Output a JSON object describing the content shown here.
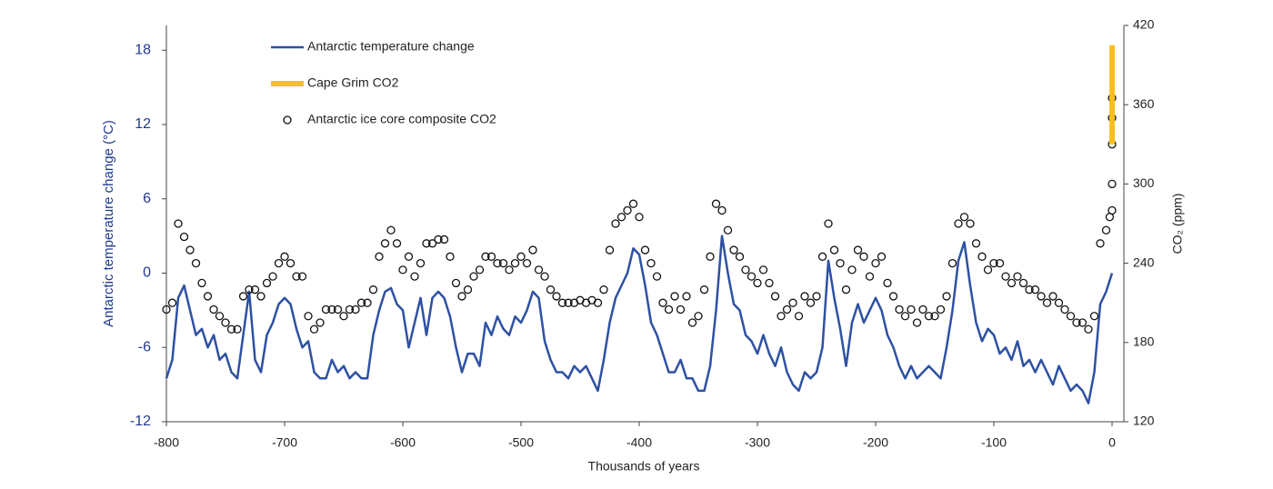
{
  "chart_data": {
    "type": "line",
    "xlabel": "Thousands of years",
    "ylabel": "Antarctic temperature change (°C)",
    "y2label": "CO₂ (ppm)",
    "xlim": [
      -800,
      10
    ],
    "xticks": [
      -800,
      -700,
      -600,
      -500,
      -400,
      -300,
      -200,
      -100,
      0
    ],
    "ylim": [
      -12,
      20
    ],
    "yticks": [
      -12,
      -6,
      0,
      6,
      12,
      18
    ],
    "y2lim": [
      120,
      420
    ],
    "y2ticks": [
      120,
      180,
      240,
      300,
      360,
      420
    ],
    "legend": "upper left",
    "series": [
      {
        "name": "Antarctic temperature change",
        "color": "#2e51a2",
        "style": "line",
        "x": [
          -800,
          -795,
          -790,
          -785,
          -780,
          -775,
          -770,
          -765,
          -760,
          -755,
          -750,
          -745,
          -740,
          -735,
          -730,
          -725,
          -720,
          -715,
          -710,
          -705,
          -700,
          -695,
          -690,
          -685,
          -680,
          -675,
          -670,
          -665,
          -660,
          -655,
          -650,
          -645,
          -640,
          -635,
          -630,
          -625,
          -620,
          -615,
          -610,
          -605,
          -600,
          -595,
          -590,
          -585,
          -580,
          -575,
          -570,
          -565,
          -560,
          -555,
          -550,
          -545,
          -540,
          -535,
          -530,
          -525,
          -520,
          -515,
          -510,
          -505,
          -500,
          -495,
          -490,
          -485,
          -480,
          -475,
          -470,
          -465,
          -460,
          -455,
          -450,
          -445,
          -440,
          -435,
          -430,
          -425,
          -420,
          -415,
          -410,
          -405,
          -400,
          -395,
          -390,
          -385,
          -380,
          -375,
          -370,
          -365,
          -360,
          -355,
          -350,
          -345,
          -340,
          -335,
          -330,
          -325,
          -320,
          -315,
          -310,
          -305,
          -300,
          -295,
          -290,
          -285,
          -280,
          -275,
          -270,
          -265,
          -260,
          -255,
          -250,
          -245,
          -240,
          -235,
          -230,
          -225,
          -220,
          -215,
          -210,
          -205,
          -200,
          -195,
          -190,
          -185,
          -180,
          -175,
          -170,
          -165,
          -160,
          -155,
          -150,
          -145,
          -140,
          -135,
          -130,
          -125,
          -120,
          -115,
          -110,
          -105,
          -100,
          -95,
          -90,
          -85,
          -80,
          -75,
          -70,
          -65,
          -60,
          -55,
          -50,
          -45,
          -40,
          -35,
          -30,
          -25,
          -20,
          -15,
          -10,
          -5,
          0
        ],
        "values": [
          -8.5,
          -7,
          -2,
          -1,
          -3,
          -5,
          -4.5,
          -6,
          -5,
          -7,
          -6.5,
          -8,
          -8.5,
          -5,
          -1.5,
          -7,
          -8,
          -5,
          -4,
          -2.5,
          -2,
          -2.5,
          -4.5,
          -6,
          -5.5,
          -8,
          -8.5,
          -8.5,
          -7,
          -8,
          -7.5,
          -8.5,
          -8,
          -8.5,
          -8.5,
          -5,
          -3,
          -1.5,
          -1.2,
          -2.5,
          -3,
          -6,
          -4,
          -2,
          -5,
          -2,
          -1.5,
          -2,
          -3.5,
          -6,
          -8,
          -6.5,
          -6.5,
          -7.5,
          -4,
          -5,
          -3.5,
          -4.5,
          -5,
          -3.5,
          -4,
          -3,
          -1.5,
          -2,
          -5.5,
          -7,
          -8,
          -8,
          -8.5,
          -7.5,
          -8,
          -7.5,
          -8.5,
          -9.5,
          -7,
          -4,
          -2,
          -1,
          0,
          2,
          1.5,
          -1,
          -4,
          -5,
          -6.5,
          -8,
          -8,
          -7,
          -8.5,
          -8.5,
          -9.5,
          -9.5,
          -7.5,
          -3,
          3,
          0,
          -2.5,
          -3,
          -5,
          -5.5,
          -6.5,
          -5,
          -6.5,
          -7.5,
          -6,
          -8,
          -9,
          -9.5,
          -8,
          -8.5,
          -8,
          -6,
          1,
          -2,
          -4.5,
          -7.5,
          -4,
          -2.5,
          -4,
          -3,
          -2,
          -3,
          -5,
          -6,
          -7.5,
          -8.5,
          -7.5,
          -8.5,
          -8,
          -7.5,
          -8,
          -8.5,
          -6,
          -3,
          1,
          2.5,
          -1,
          -4,
          -5.5,
          -4.5,
          -5,
          -6.5,
          -6,
          -7,
          -5.5,
          -7.5,
          -7,
          -8,
          -7,
          -8,
          -9,
          -7.5,
          -8.5,
          -9.5,
          -9,
          -9.5,
          -10.5,
          -8,
          -2.5,
          -1.5,
          0
        ]
      },
      {
        "name": "Cape Grim CO2",
        "color": "#f9bf1e",
        "style": "thick",
        "axis": "y2",
        "x": [
          0.03,
          0.04,
          0.05
        ],
        "values": [
          330,
          370,
          405
        ]
      },
      {
        "name": "Antarctic ice core composite CO2",
        "color": "#111111",
        "style": "marker",
        "axis": "y2",
        "x": [
          -800,
          -795,
          -790,
          -785,
          -780,
          -775,
          -770,
          -765,
          -760,
          -755,
          -750,
          -745,
          -740,
          -735,
          -730,
          -725,
          -720,
          -715,
          -710,
          -705,
          -700,
          -695,
          -690,
          -685,
          -680,
          -675,
          -670,
          -665,
          -660,
          -655,
          -650,
          -645,
          -640,
          -635,
          -630,
          -625,
          -620,
          -615,
          -610,
          -605,
          -600,
          -595,
          -590,
          -585,
          -580,
          -575,
          -570,
          -565,
          -560,
          -555,
          -550,
          -545,
          -540,
          -535,
          -530,
          -525,
          -520,
          -515,
          -510,
          -505,
          -500,
          -495,
          -490,
          -485,
          -480,
          -475,
          -470,
          -465,
          -460,
          -455,
          -450,
          -445,
          -440,
          -435,
          -430,
          -425,
          -420,
          -415,
          -410,
          -405,
          -400,
          -395,
          -390,
          -385,
          -380,
          -375,
          -370,
          -365,
          -360,
          -355,
          -350,
          -345,
          -340,
          -335,
          -330,
          -325,
          -320,
          -315,
          -310,
          -305,
          -300,
          -295,
          -290,
          -285,
          -280,
          -275,
          -270,
          -265,
          -260,
          -255,
          -250,
          -245,
          -240,
          -235,
          -230,
          -225,
          -220,
          -215,
          -210,
          -205,
          -200,
          -195,
          -190,
          -185,
          -180,
          -175,
          -170,
          -165,
          -160,
          -155,
          -150,
          -145,
          -140,
          -135,
          -130,
          -125,
          -120,
          -115,
          -110,
          -105,
          -100,
          -95,
          -90,
          -85,
          -80,
          -75,
          -70,
          -65,
          -60,
          -55,
          -50,
          -45,
          -40,
          -35,
          -30,
          -25,
          -20,
          -15,
          -10,
          -5,
          -2,
          0,
          0.01,
          0.02,
          0.03,
          0.04
        ],
        "values": [
          205,
          210,
          270,
          260,
          250,
          240,
          225,
          215,
          205,
          200,
          195,
          190,
          190,
          215,
          220,
          220,
          215,
          225,
          230,
          240,
          245,
          240,
          230,
          230,
          200,
          190,
          195,
          205,
          205,
          205,
          200,
          205,
          205,
          210,
          210,
          220,
          245,
          255,
          265,
          255,
          235,
          245,
          230,
          240,
          255,
          255,
          258,
          258,
          245,
          225,
          215,
          220,
          230,
          235,
          245,
          245,
          240,
          240,
          235,
          240,
          245,
          240,
          250,
          235,
          230,
          220,
          215,
          210,
          210,
          210,
          212,
          210,
          212,
          210,
          220,
          250,
          270,
          275,
          280,
          285,
          275,
          250,
          240,
          230,
          210,
          205,
          215,
          205,
          215,
          195,
          200,
          220,
          245,
          285,
          280,
          265,
          250,
          245,
          235,
          230,
          225,
          235,
          225,
          215,
          200,
          205,
          210,
          200,
          215,
          210,
          215,
          245,
          270,
          250,
          240,
          220,
          235,
          250,
          245,
          230,
          240,
          245,
          225,
          215,
          205,
          200,
          205,
          195,
          205,
          200,
          200,
          205,
          215,
          240,
          270,
          275,
          270,
          255,
          245,
          235,
          240,
          240,
          230,
          225,
          230,
          225,
          220,
          220,
          215,
          210,
          215,
          210,
          205,
          200,
          195,
          195,
          190,
          200,
          255,
          265,
          275,
          280,
          300,
          330,
          350,
          365
        ]
      }
    ]
  }
}
